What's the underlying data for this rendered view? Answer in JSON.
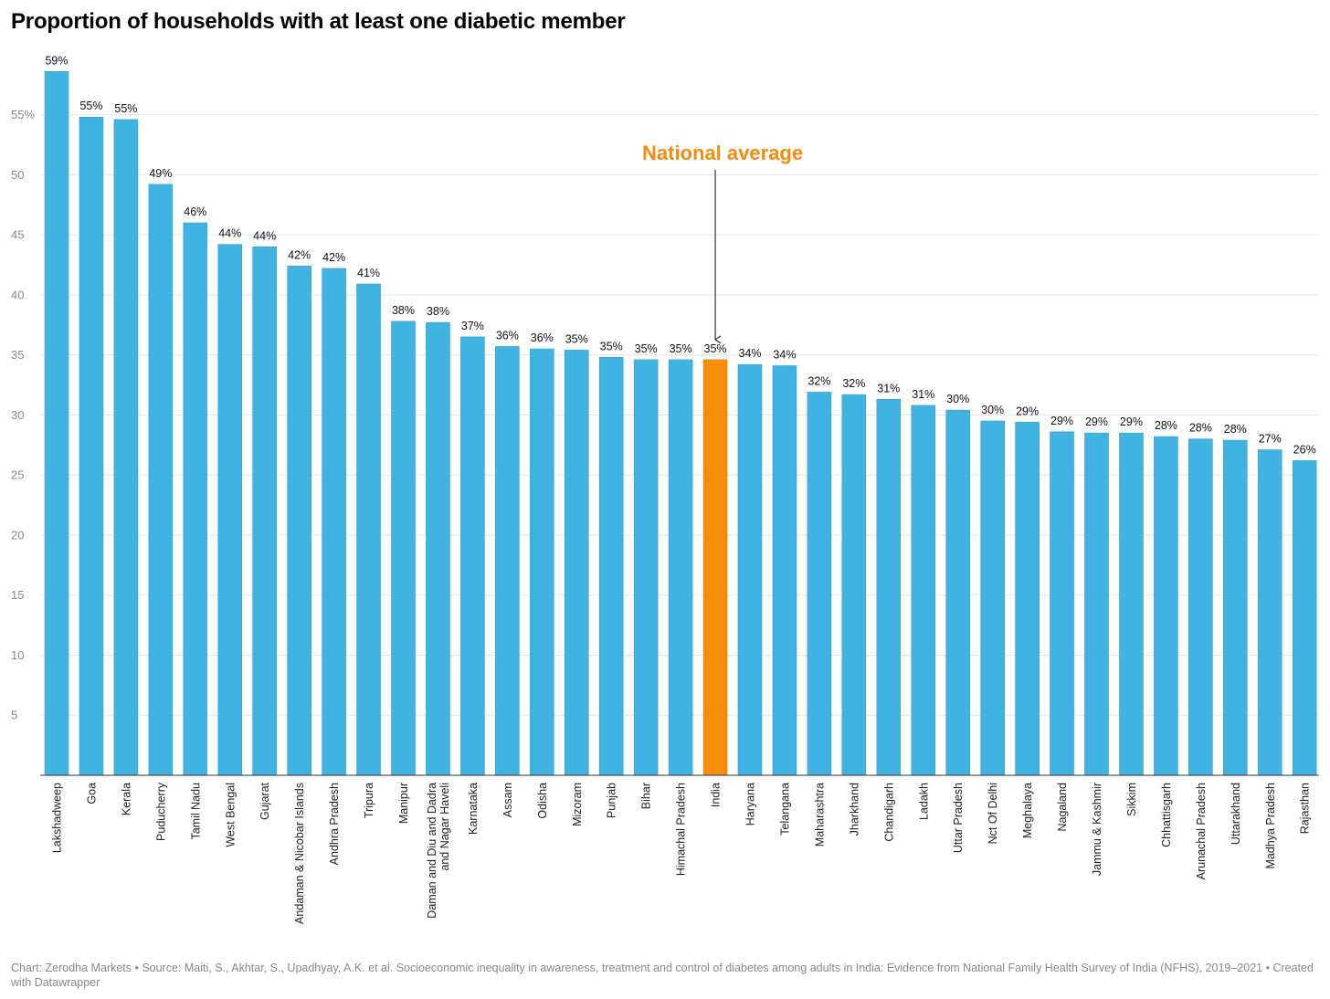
{
  "chart_data": {
    "type": "bar",
    "title": "Proportion of households with at least one diabetic member",
    "xlabel": "",
    "ylabel": "",
    "ylim": [
      0,
      59
    ],
    "yticks": [
      5,
      10,
      15,
      20,
      25,
      30,
      35,
      40,
      45,
      50,
      55
    ],
    "ytick_labels": [
      "5",
      "10",
      "15",
      "20",
      "25",
      "30",
      "35",
      "40",
      "45",
      "50",
      "55%"
    ],
    "grid": true,
    "categories": [
      "Lakshadweep",
      "Goa",
      "Kerala",
      "Puducherry",
      "Tamil Nadu",
      "West Bengal",
      "Gujarat",
      "Andaman & Nicobar Islands",
      "Andhra Pradesh",
      "Tripura",
      "Manipur",
      "Daman and Diu and Dadra and Nagar Haveli",
      "Karnataka",
      "Assam",
      "Odisha",
      "Mizoram",
      "Punjab",
      "Bihar",
      "Himachal Pradesh",
      "India",
      "Haryana",
      "Telangana",
      "Maharashtra",
      "Jharkhand",
      "Chandigarh",
      "Ladakh",
      "Uttar Pradesh",
      "Nct Of Delhi",
      "Meghalaya",
      "Nagaland",
      "Jammu & Kashmir",
      "Sikkim",
      "Chhattisgarh",
      "Arunachal Pradesh",
      "Uttarakhand",
      "Madhya Pradesh",
      "Rajasthan"
    ],
    "category_lines": [
      [
        "Lakshadweep"
      ],
      [
        "Goa"
      ],
      [
        "Kerala"
      ],
      [
        "Puducherry"
      ],
      [
        "Tamil Nadu"
      ],
      [
        "West Bengal"
      ],
      [
        "Gujarat"
      ],
      [
        "Andaman & Nicobar Islands"
      ],
      [
        "Andhra Pradesh"
      ],
      [
        "Tripura"
      ],
      [
        "Manipur"
      ],
      [
        "Daman and Diu and Dadra",
        "and Nagar Haveli"
      ],
      [
        "Karnataka"
      ],
      [
        "Assam"
      ],
      [
        "Odisha"
      ],
      [
        "Mizoram"
      ],
      [
        "Punjab"
      ],
      [
        "Bihar"
      ],
      [
        "Himachal Pradesh"
      ],
      [
        "India"
      ],
      [
        "Haryana"
      ],
      [
        "Telangana"
      ],
      [
        "Maharashtra"
      ],
      [
        "Jharkhand"
      ],
      [
        "Chandigarh"
      ],
      [
        "Ladakh"
      ],
      [
        "Uttar Pradesh"
      ],
      [
        "Nct Of Delhi"
      ],
      [
        "Meghalaya"
      ],
      [
        "Nagaland"
      ],
      [
        "Jammu & Kashmir"
      ],
      [
        "Sikkim"
      ],
      [
        "Chhattisgarh"
      ],
      [
        "Arunachal Pradesh"
      ],
      [
        "Uttarakhand"
      ],
      [
        "Madhya Pradesh"
      ],
      [
        "Rajasthan"
      ]
    ],
    "values": [
      58.6,
      54.8,
      54.6,
      49.2,
      46.0,
      44.2,
      44.0,
      42.4,
      42.2,
      40.9,
      37.8,
      37.7,
      36.5,
      35.7,
      35.5,
      35.4,
      34.8,
      34.6,
      34.6,
      34.6,
      34.2,
      34.1,
      31.9,
      31.7,
      31.3,
      30.8,
      30.4,
      29.5,
      29.4,
      28.6,
      28.5,
      28.5,
      28.2,
      28.0,
      27.9,
      27.1,
      26.2
    ],
    "value_labels": [
      "59%",
      "55%",
      "55%",
      "49%",
      "46%",
      "44%",
      "44%",
      "42%",
      "42%",
      "41%",
      "38%",
      "38%",
      "37%",
      "36%",
      "36%",
      "35%",
      "35%",
      "35%",
      "35%",
      "35%",
      "34%",
      "34%",
      "32%",
      "32%",
      "31%",
      "31%",
      "30%",
      "30%",
      "29%",
      "29%",
      "29%",
      "29%",
      "28%",
      "28%",
      "28%",
      "27%",
      "26%"
    ],
    "highlight_category": "India",
    "annotation": {
      "text": "National average",
      "target": "India"
    },
    "colors": {
      "bar": "#41b3e2",
      "highlight": "#f58c0a",
      "annotation": "#f58c0a"
    }
  },
  "footer": "Chart: Zerodha Markets • Source: Maiti, S., Akhtar, S., Upadhyay, A.K. et al. Socioeconomic inequality in awareness, treatment and control of diabetes among adults in India: Evidence from National Family Health Survey of India (NFHS), 2019–2021 • Created with Datawrapper"
}
